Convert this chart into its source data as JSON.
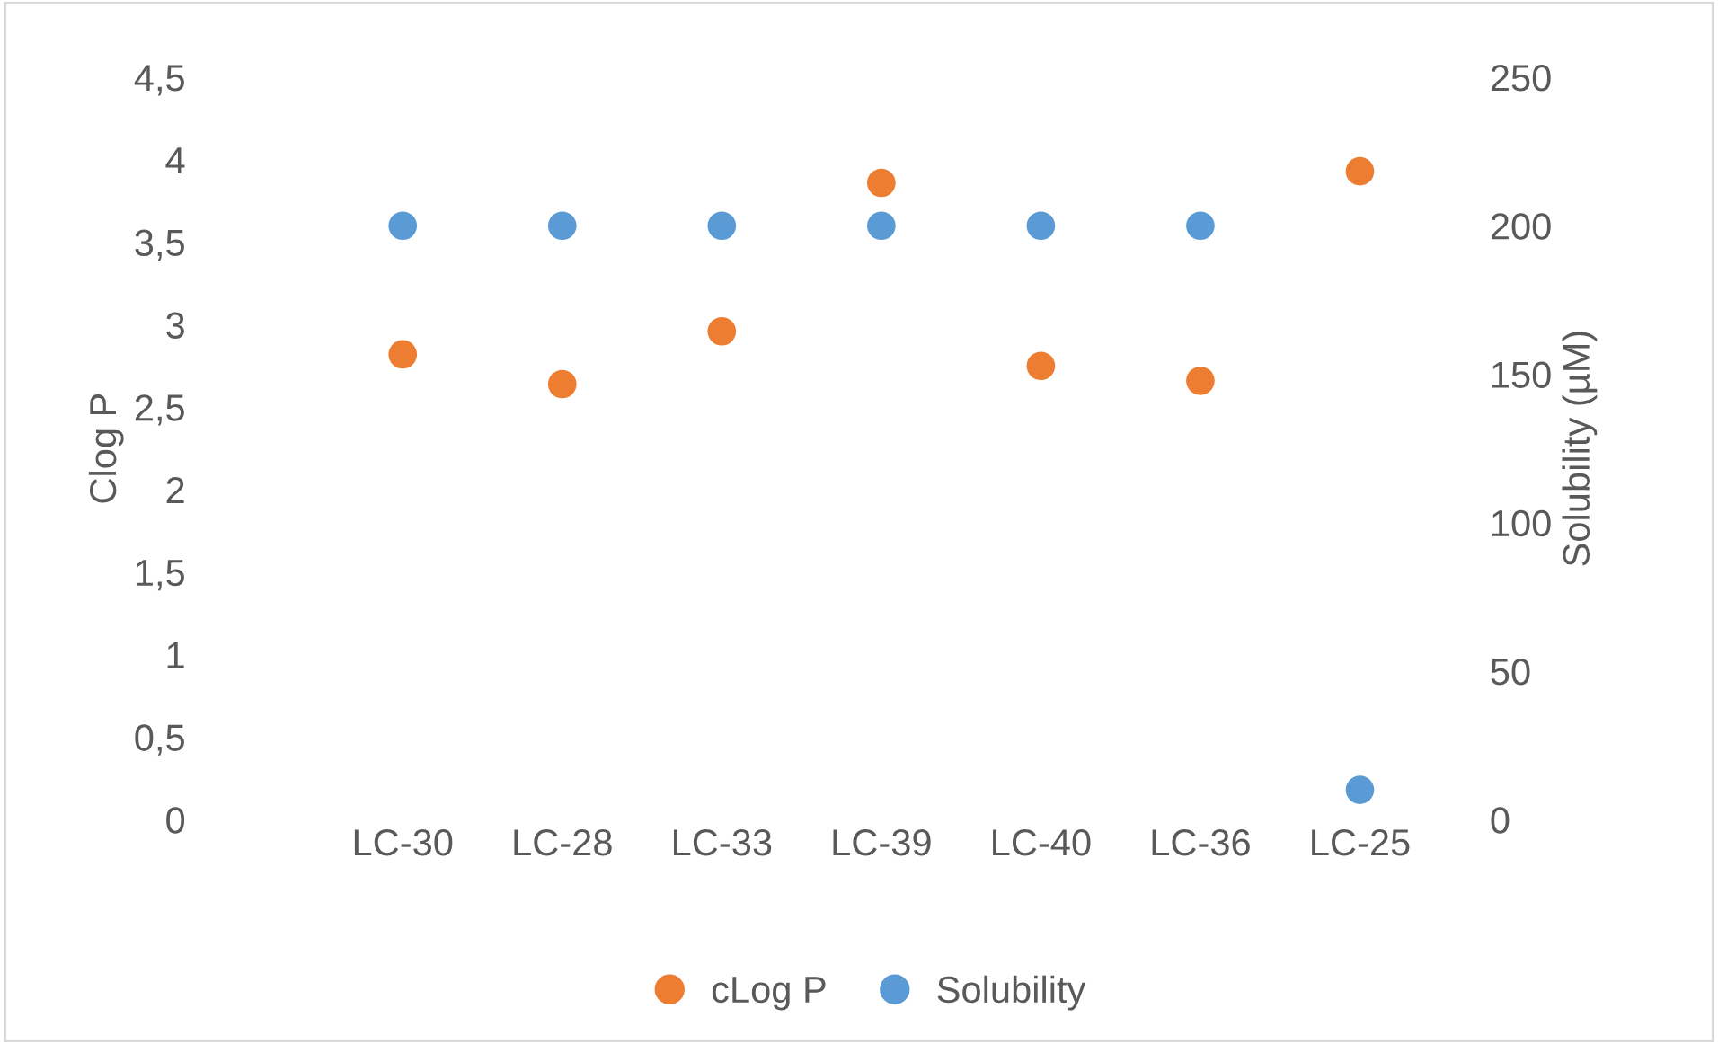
{
  "chart_data": {
    "type": "scatter",
    "ylabel": "Clog P",
    "y2label": "Solubility (µM)",
    "categories": [
      "LC-30",
      "LC-28",
      "LC-33",
      "LC-39",
      "LC-40",
      "LC-36",
      "LC-25"
    ],
    "series": [
      {
        "name": "cLog P",
        "color": "#ed7d31",
        "values": [
          2.82,
          2.64,
          2.96,
          3.86,
          2.75,
          2.66,
          3.93
        ]
      },
      {
        "name": "Solubility",
        "color": "#5b9bd5",
        "axis": "y2",
        "values": [
          200,
          200,
          200,
          200,
          200,
          200,
          10
        ]
      }
    ],
    "ylim": [
      0,
      4.5
    ],
    "yticks": [
      0,
      {
        "value": 0.5,
        "label": "0,5"
      },
      1,
      {
        "value": 1.5,
        "label": "1,5"
      },
      2,
      {
        "value": 2.5,
        "label": "2,5"
      },
      3,
      {
        "value": 3.5,
        "label": "3,5"
      },
      4,
      {
        "value": 4.5,
        "label": "4,5"
      }
    ],
    "y2lim": [
      0,
      250
    ],
    "y2ticks": [
      0,
      50,
      100,
      150,
      200,
      250
    ],
    "grid": false,
    "legend": "bottom",
    "marker": "circle"
  }
}
